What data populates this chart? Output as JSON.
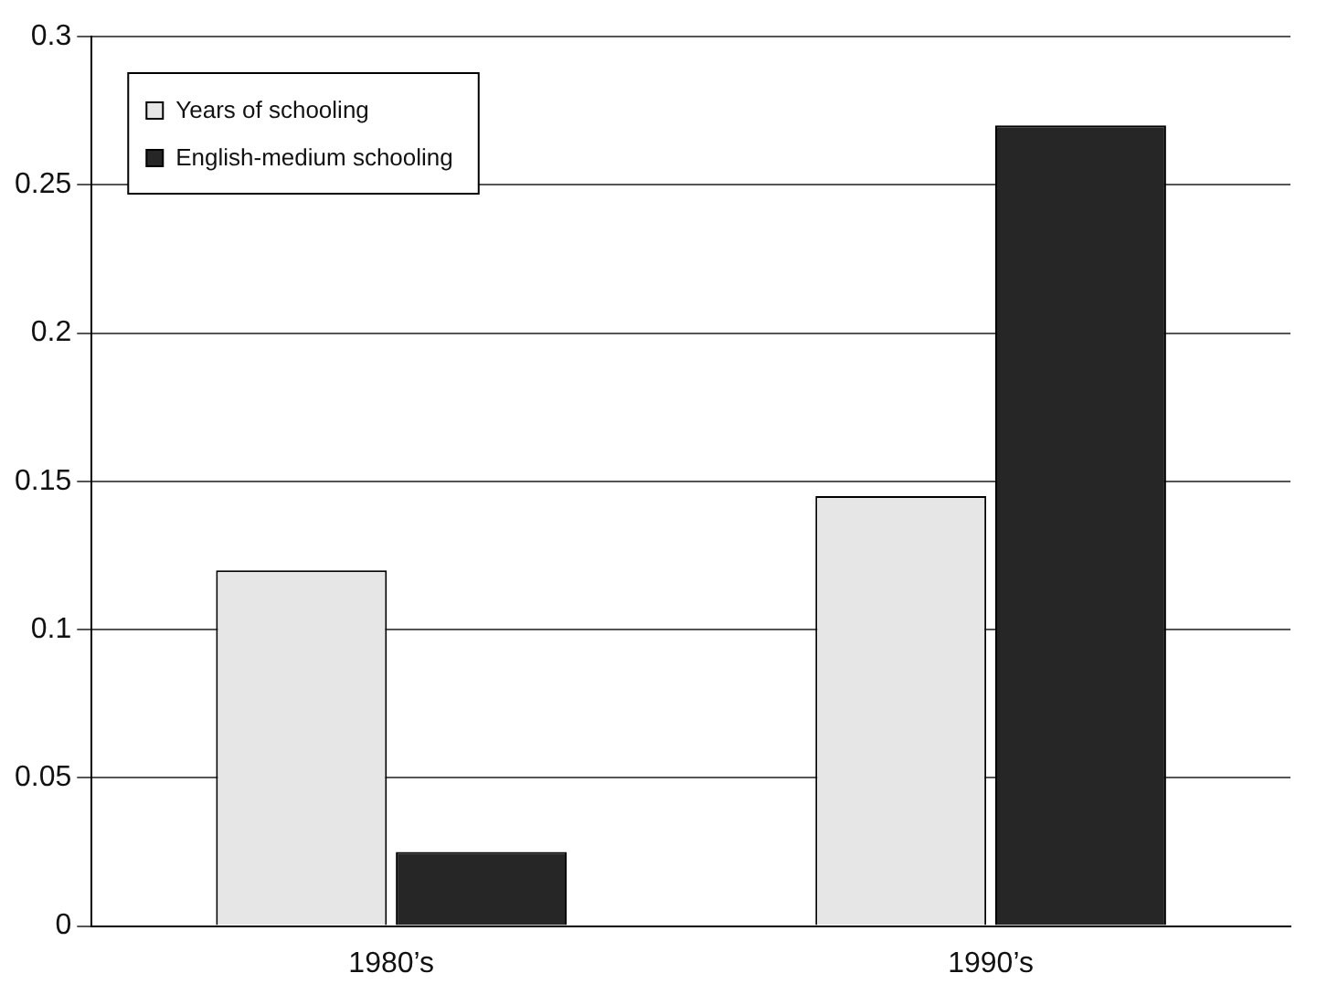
{
  "chart_data": {
    "type": "bar",
    "categories": [
      "1980’s",
      "1990’s"
    ],
    "series": [
      {
        "name": "Years of schooling",
        "color": "#e6e6e6",
        "values": [
          0.12,
          0.145
        ]
      },
      {
        "name": "English-medium schooling",
        "color": "#262626",
        "values": [
          0.025,
          0.27
        ]
      }
    ],
    "ylim": [
      0,
      0.3
    ],
    "yticks": [
      0,
      0.05,
      0.1,
      0.15,
      0.2,
      0.25,
      0.3
    ],
    "grid": "y",
    "legend": "top left"
  }
}
